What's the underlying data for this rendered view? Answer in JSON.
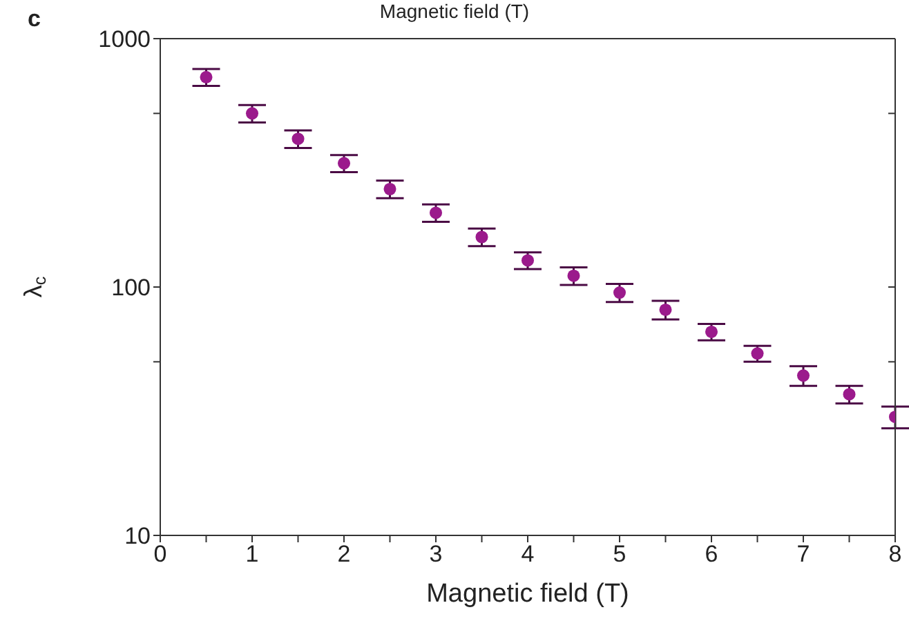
{
  "chart_data": {
    "type": "scatter",
    "annotations": [
      "c",
      "Magnetic field (T)"
    ],
    "xlabel": "Magnetic field (T)",
    "ylabel": "λ$_{c}$",
    "x": [
      0.5,
      1,
      1.5,
      2,
      2.5,
      3,
      3.5,
      4,
      4.5,
      5,
      5.5,
      6,
      6.5,
      7,
      7.5,
      8
    ],
    "series": [
      {
        "color": "#9b1a8c",
        "values": [
          700,
          500,
          395,
          315,
          248,
          199,
          159,
          128,
          111,
          95,
          81,
          66,
          54,
          44,
          37,
          30
        ],
        "errors": [
          55,
          40,
          32,
          25,
          20,
          16,
          13,
          10,
          9,
          8,
          7,
          5,
          4,
          4,
          3,
          3
        ]
      }
    ],
    "marker": "circle",
    "log": "y",
    "xlim": [
      0,
      8
    ],
    "xticks": [
      0,
      {
        "value": 0.5,
        "label": null
      },
      1,
      {
        "value": 1.5,
        "label": null
      },
      2,
      {
        "value": 2.5,
        "label": null
      },
      3,
      {
        "value": 3.5,
        "label": null
      },
      4,
      {
        "value": 4.5,
        "label": null
      },
      5,
      {
        "value": 5.5,
        "label": null
      },
      6,
      {
        "value": 6.5,
        "label": null
      },
      7,
      {
        "value": 7.5,
        "label": null
      },
      8
    ],
    "ylim": [
      10,
      1000
    ],
    "yticks": [
      10,
      {
        "value": 50,
        "label": null
      },
      100,
      {
        "value": 500,
        "label": null
      },
      1000
    ]
  }
}
